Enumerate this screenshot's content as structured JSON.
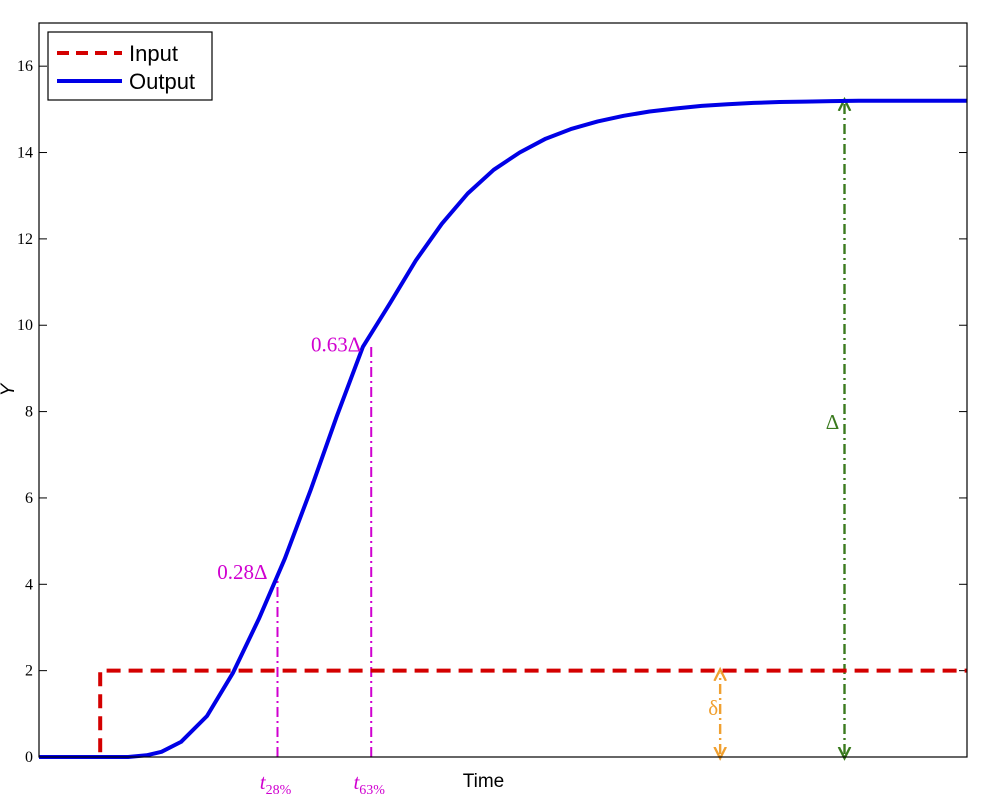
{
  "chart_data": {
    "type": "line",
    "title": "",
    "xlabel": "Time",
    "ylabel": "Y",
    "xlim": [
      0,
      100
    ],
    "ylim": [
      0,
      17
    ],
    "y_ticks": [
      0,
      2,
      4,
      6,
      8,
      10,
      12,
      14,
      16
    ],
    "grid": false,
    "legend_position": "top-left",
    "series": [
      {
        "name": "Input",
        "style": "dashed",
        "color": "#d40000",
        "x": [
          0,
          6.6,
          6.6,
          100
        ],
        "y": [
          0,
          0,
          2,
          2
        ]
      },
      {
        "name": "Output",
        "style": "solid",
        "color": "#0000e6",
        "x": [
          0,
          9.6,
          11.6,
          13.2,
          15.3,
          18.1,
          20.9,
          23.7,
          26.5,
          29.3,
          32.1,
          34.9,
          37.8,
          40.6,
          43.4,
          46.2,
          49.0,
          51.8,
          54.6,
          57.4,
          60.2,
          63.0,
          65.8,
          68.6,
          71.4,
          74.2,
          77.0,
          79.8,
          82.6,
          85.4,
          88.3,
          91.1,
          93.9,
          96.7,
          100
        ],
        "y": [
          0,
          0,
          0.04,
          0.12,
          0.35,
          0.95,
          1.95,
          3.2,
          4.6,
          6.2,
          7.9,
          9.5,
          10.5,
          11.5,
          12.35,
          13.05,
          13.6,
          14.0,
          14.32,
          14.55,
          14.72,
          14.85,
          14.95,
          15.02,
          15.08,
          15.12,
          15.15,
          15.17,
          15.18,
          15.19,
          15.2,
          15.2,
          15.2,
          15.2,
          15.2
        ]
      }
    ],
    "annotations": {
      "t28": {
        "x": 25.7,
        "y": 4.1,
        "y_label": "0.28Δ",
        "x_label": "t",
        "x_label_sub": "28%"
      },
      "t63": {
        "x": 35.8,
        "y": 9.58,
        "y_label": "0.63Δ",
        "x_label": "t",
        "x_label_sub": "63%"
      },
      "delta_small": {
        "x": 73.4,
        "y_from": 0,
        "y_to": 2,
        "label": "δ"
      },
      "delta_big": {
        "x": 86.8,
        "y_from": 0,
        "y_to": 15.2,
        "label": "Δ"
      }
    },
    "colors": {
      "annotation_magenta": "#d000d0",
      "delta_small_orange": "#f0a030",
      "delta_big_green": "#3a7a1e"
    }
  }
}
